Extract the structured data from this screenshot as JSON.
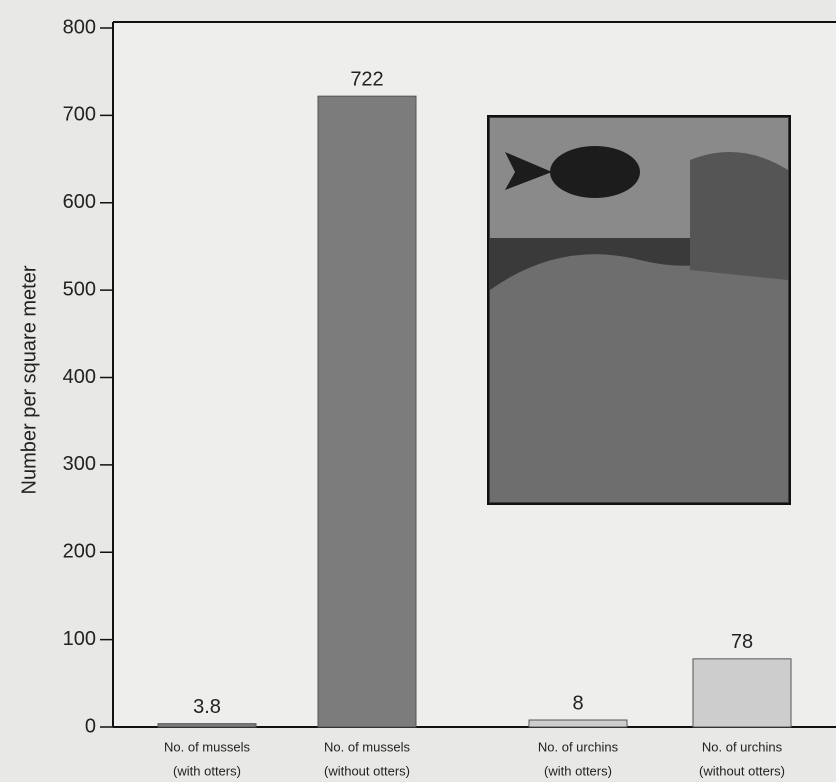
{
  "chart_data": {
    "type": "bar",
    "y_label": "Number per square meter",
    "categories": [
      [
        "No. of mussels",
        "(with otters)"
      ],
      [
        "No. of mussels",
        "(without otters)"
      ],
      [
        "No. of urchins",
        "(with otters)"
      ],
      [
        "No. of urchins",
        "(without otters)"
      ]
    ],
    "values": [
      3.8,
      722,
      8,
      78
    ],
    "colors": [
      "#7c7c7c",
      "#7c7c7c",
      "#cdcdcd",
      "#cdcdcd"
    ],
    "ylim": [
      0,
      800
    ],
    "yticks": [
      0,
      100,
      200,
      300,
      400,
      500,
      600,
      700,
      800
    ],
    "grid": false
  }
}
